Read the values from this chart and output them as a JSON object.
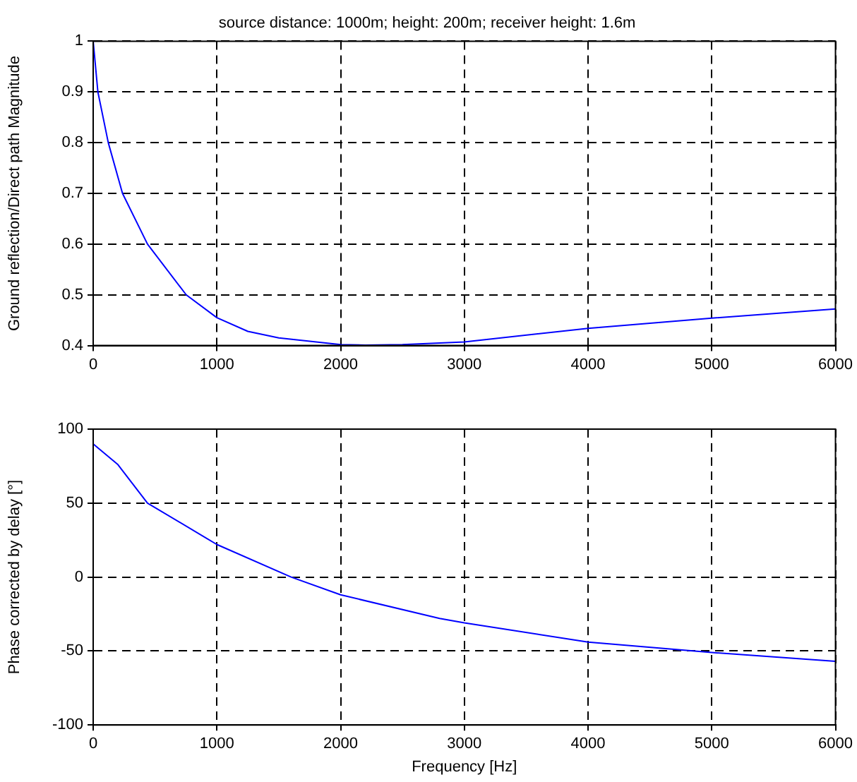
{
  "chart_data": [
    {
      "type": "line",
      "title": "source distance: 1000m; height: 200m; receiver height: 1.6m",
      "ylabel": "Ground reflection/Direct path Magnitude",
      "xlim": [
        0,
        6000
      ],
      "xticks": [
        0,
        1000,
        2000,
        3000,
        4000,
        5000,
        6000
      ],
      "ylim": [
        0.4,
        1
      ],
      "yticks": [
        0.4,
        0.5,
        0.6,
        0.7,
        0.8,
        0.9,
        1
      ],
      "grid": true,
      "legend": false,
      "marker": "none",
      "line_style": "solid",
      "series": [
        {
          "color": "#0000ff",
          "x": [
            0,
            38,
            122,
            237,
            439,
            752,
            1000,
            1250,
            1500,
            2000,
            2200,
            2500,
            3000,
            4000,
            5000,
            6000
          ],
          "values": [
            1.0,
            0.9,
            0.8,
            0.7,
            0.6,
            0.5,
            0.455,
            0.428,
            0.415,
            0.402,
            0.401,
            0.402,
            0.407,
            0.434,
            0.454,
            0.472
          ]
        }
      ]
    },
    {
      "type": "line",
      "xlabel": "Frequency [Hz]",
      "ylabel": "Phase corrected by delay [°]",
      "xlim": [
        0,
        6000
      ],
      "xticks": [
        0,
        1000,
        2000,
        3000,
        4000,
        5000,
        6000
      ],
      "ylim": [
        -100,
        100
      ],
      "yticks": [
        -100,
        -50,
        0,
        50,
        100
      ],
      "grid": true,
      "legend": false,
      "marker": "none",
      "line_style": "solid",
      "series": [
        {
          "color": "#0000ff",
          "x": [
            0,
            200,
            439,
            1000,
            1600,
            2000,
            2800,
            3000,
            4000,
            5000,
            6000
          ],
          "values": [
            90,
            76,
            50,
            22,
            0,
            -12,
            -28,
            -31,
            -44,
            -51,
            -57
          ]
        }
      ]
    }
  ]
}
